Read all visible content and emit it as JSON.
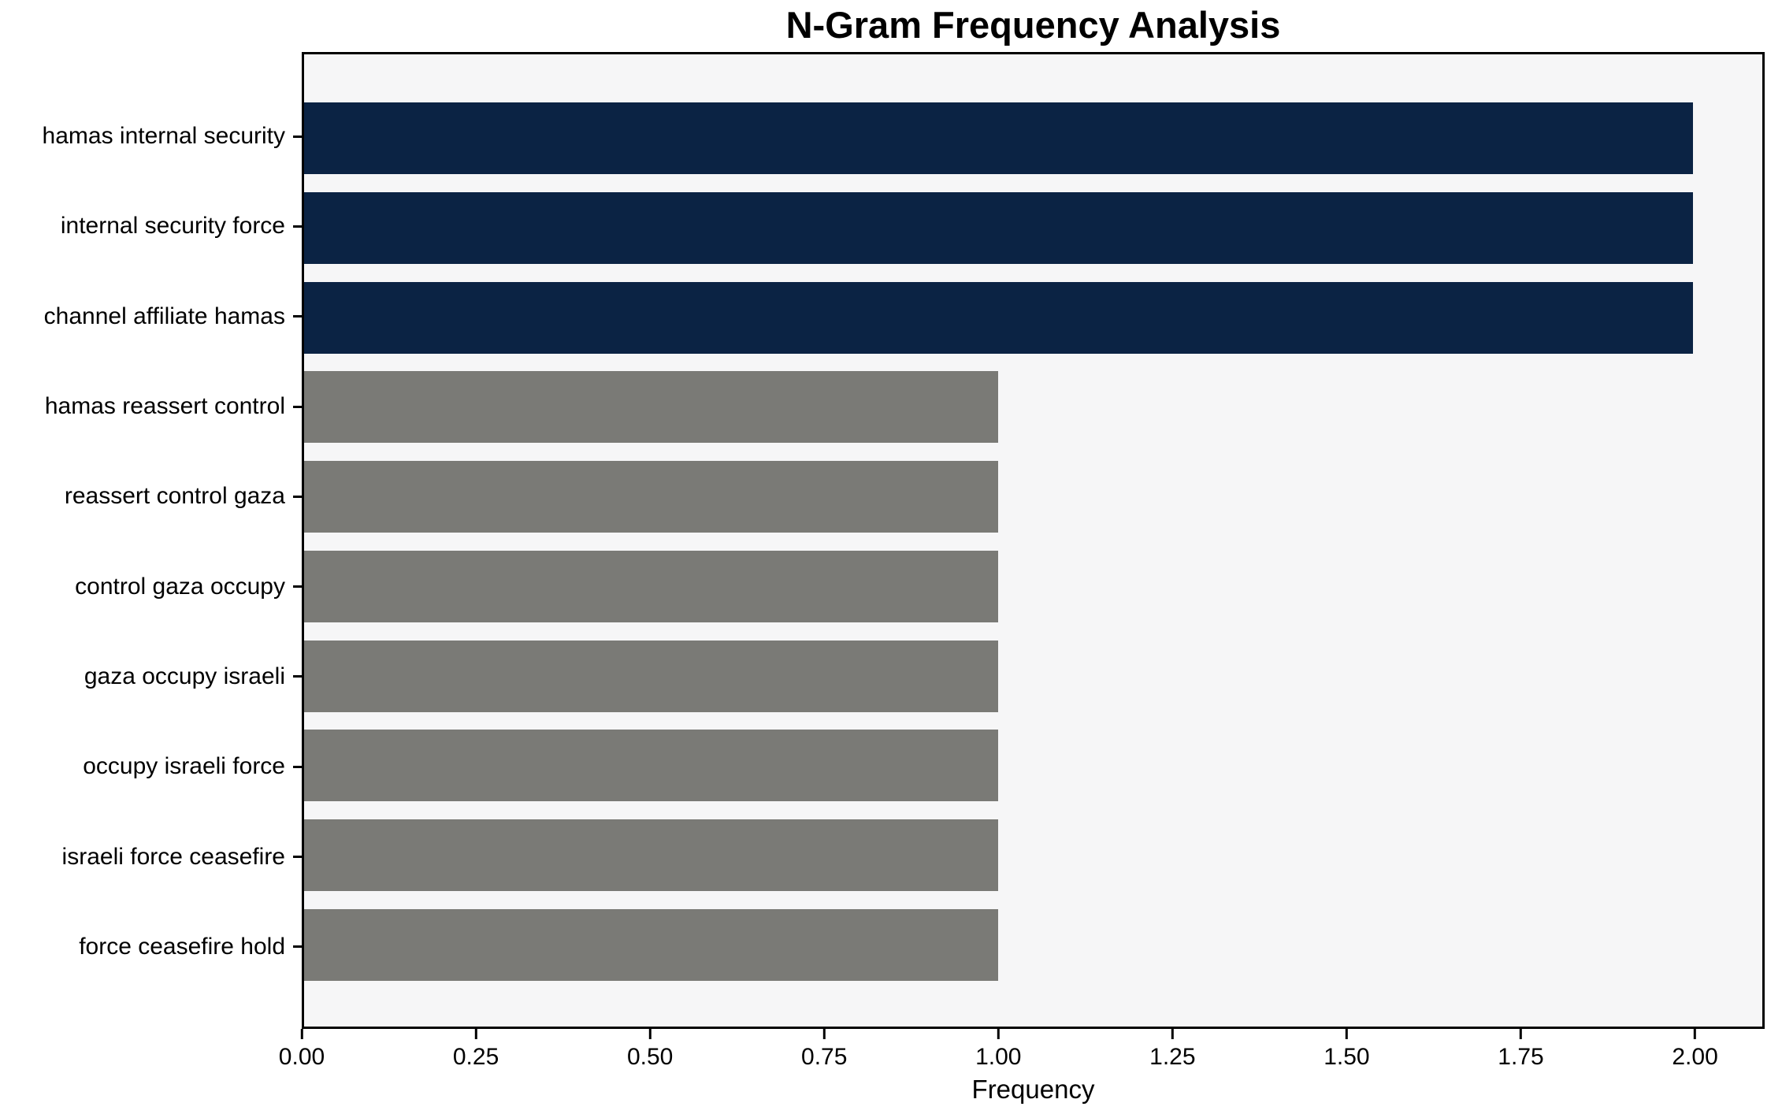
{
  "chart_data": {
    "type": "bar",
    "orientation": "horizontal",
    "title": "N-Gram Frequency Analysis",
    "xlabel": "Frequency",
    "ylabel": "",
    "categories": [
      "hamas internal security",
      "internal security force",
      "channel affiliate hamas",
      "hamas reassert control",
      "reassert control gaza",
      "control gaza occupy",
      "gaza occupy israeli",
      "occupy israeli force",
      "israeli force ceasefire",
      "force ceasefire hold"
    ],
    "values": [
      2,
      2,
      2,
      1,
      1,
      1,
      1,
      1,
      1,
      1
    ],
    "bar_colors": [
      "#0b2344",
      "#0b2344",
      "#0b2344",
      "#7a7a76",
      "#7a7a76",
      "#7a7a76",
      "#7a7a76",
      "#7a7a76",
      "#7a7a76",
      "#7a7a76"
    ],
    "xlim": [
      0,
      2.1
    ],
    "xtick_values": [
      0,
      0.25,
      0.5,
      0.75,
      1,
      1.25,
      1.5,
      1.75,
      2
    ],
    "xtick_labels": [
      "0.00",
      "0.25",
      "0.50",
      "0.75",
      "1.00",
      "1.25",
      "1.50",
      "1.75",
      "2.00"
    ],
    "grid": false,
    "legend": false,
    "colors": {
      "bar_highlight": "#0b2344",
      "bar_default": "#7a7a76",
      "plot_background": "#f6f6f7",
      "figure_background": "#ffffff",
      "spine": "#000000",
      "text": "#000000"
    }
  }
}
